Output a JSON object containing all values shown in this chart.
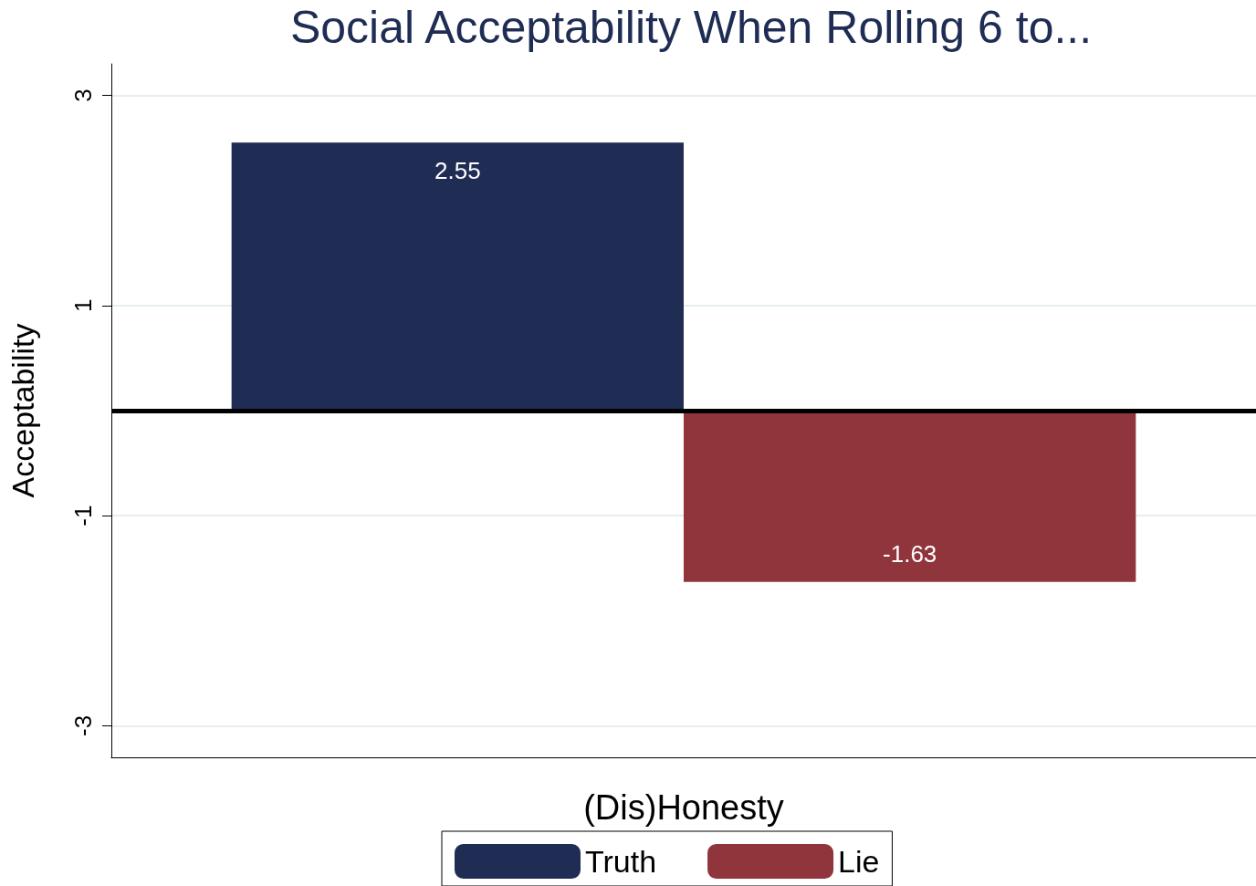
{
  "chart_data": {
    "type": "bar",
    "title": "Social Acceptability When Rolling 6 to...",
    "xlabel": "(Dis)Honesty",
    "ylabel": "Acceptability",
    "categories": [
      null
    ],
    "series": [
      {
        "name": "Truth",
        "color": "#1f2d54",
        "values": [
          2.55
        ]
      },
      {
        "name": "Lie",
        "color": "#90353b",
        "values": [
          -1.63
        ]
      }
    ],
    "ylim": [
      -3.3,
      3.3
    ],
    "yticks": [
      -3,
      -1,
      1,
      3
    ],
    "grid": "y",
    "legend": "bottom",
    "data_labels": true,
    "ref_lines": [
      {
        "axis": "y",
        "value": 0,
        "color": "#000000"
      }
    ]
  }
}
